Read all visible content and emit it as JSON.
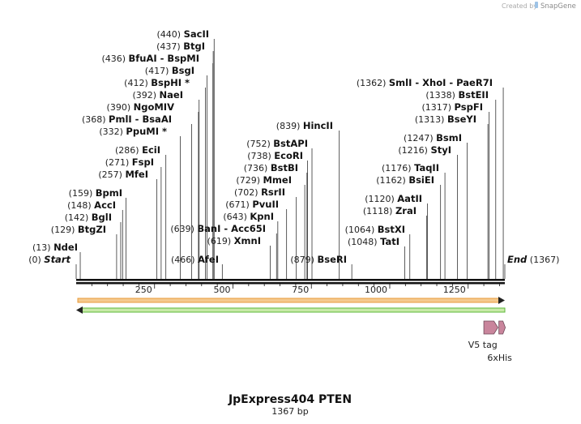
{
  "map": {
    "title": "JpExpress404 PTEN",
    "length_label": "1367 bp",
    "length": 1367,
    "credit": "Created by",
    "brand": "SnapGene",
    "ticks": [
      "250",
      "500",
      "750",
      "1000",
      "1250"
    ],
    "start": {
      "pos_label": "(0)",
      "name": "Start"
    },
    "end": {
      "pos_label": "(1367)",
      "name": "End"
    },
    "sites_top": [
      {
        "pos": 440,
        "pos_label": "(440)",
        "name": "SacII"
      },
      {
        "pos": 437,
        "pos_label": "(437)",
        "name": "BtgI"
      },
      {
        "pos": 436,
        "pos_label": "(436)",
        "name": "BfuAI  -  BspMI"
      },
      {
        "pos": 417,
        "pos_label": "(417)",
        "name": "BsgI"
      },
      {
        "pos": 412,
        "pos_label": "(412)",
        "name": "BspHI *"
      },
      {
        "pos": 392,
        "pos_label": "(392)",
        "name": "NaeI"
      },
      {
        "pos": 390,
        "pos_label": "(390)",
        "name": "NgoMIV"
      },
      {
        "pos": 368,
        "pos_label": "(368)",
        "name": "PmlI  -  BsaAI"
      },
      {
        "pos": 332,
        "pos_label": "(332)",
        "name": "PpuMI *"
      },
      {
        "pos": 286,
        "pos_label": "(286)",
        "name": "EciI"
      },
      {
        "pos": 271,
        "pos_label": "(271)",
        "name": "FspI"
      },
      {
        "pos": 257,
        "pos_label": "(257)",
        "name": "MfeI"
      },
      {
        "pos": 159,
        "pos_label": "(159)",
        "name": "BpmI"
      },
      {
        "pos": 148,
        "pos_label": "(148)",
        "name": "AccI"
      },
      {
        "pos": 142,
        "pos_label": "(142)",
        "name": "BglI"
      },
      {
        "pos": 129,
        "pos_label": "(129)",
        "name": "BtgZI"
      },
      {
        "pos": 13,
        "pos_label": "(13)",
        "name": "NdeI"
      }
    ],
    "sites_mid": [
      {
        "pos": 839,
        "pos_label": "(839)",
        "name": "HincII"
      },
      {
        "pos": 752,
        "pos_label": "(752)",
        "name": "BstAPI"
      },
      {
        "pos": 738,
        "pos_label": "(738)",
        "name": "EcoRI"
      },
      {
        "pos": 736,
        "pos_label": "(736)",
        "name": "BstBI"
      },
      {
        "pos": 729,
        "pos_label": "(729)",
        "name": "MmeI"
      },
      {
        "pos": 702,
        "pos_label": "(702)",
        "name": "RsrII"
      },
      {
        "pos": 671,
        "pos_label": "(671)",
        "name": "PvuII"
      },
      {
        "pos": 643,
        "pos_label": "(643)",
        "name": "KpnI"
      },
      {
        "pos": 639,
        "pos_label": "(639)",
        "name": "BanI  -  Acc65I"
      },
      {
        "pos": 619,
        "pos_label": "(619)",
        "name": "XmnI"
      },
      {
        "pos": 466,
        "pos_label": "(466)",
        "name": "AfeI"
      },
      {
        "pos": 879,
        "pos_label": "(879)",
        "name": "BseRI"
      }
    ],
    "sites_right": [
      {
        "pos": 1362,
        "pos_label": "(1362)",
        "name": "SmlI   -  XhoI   -  PaeR7I"
      },
      {
        "pos": 1338,
        "pos_label": "(1338)",
        "name": "BstEII"
      },
      {
        "pos": 1317,
        "pos_label": "(1317)",
        "name": "PspFI"
      },
      {
        "pos": 1313,
        "pos_label": "(1313)",
        "name": "BseYI"
      },
      {
        "pos": 1247,
        "pos_label": "(1247)",
        "name": "BsmI"
      },
      {
        "pos": 1216,
        "pos_label": "(1216)",
        "name": "StyI"
      },
      {
        "pos": 1176,
        "pos_label": "(1176)",
        "name": "TaqII"
      },
      {
        "pos": 1162,
        "pos_label": "(1162)",
        "name": "BsiEI"
      },
      {
        "pos": 1120,
        "pos_label": "(1120)",
        "name": "AatII"
      },
      {
        "pos": 1118,
        "pos_label": "(1118)",
        "name": "ZraI"
      },
      {
        "pos": 1064,
        "pos_label": "(1064)",
        "name": "BstXI"
      },
      {
        "pos": 1048,
        "pos_label": "(1048)",
        "name": "TatI"
      }
    ],
    "features": [
      {
        "name": "V5 tag",
        "start": 1300,
        "end": 1345,
        "color": "#c9859c"
      },
      {
        "name": "6xHis",
        "start": 1348,
        "end": 1366,
        "color": "#c9859c"
      }
    ],
    "colors": {
      "orange_bar": "#f5c98e",
      "orange_edge": "#e89a3a",
      "green_bar": "#c8eaa8",
      "green_edge": "#5cb83a"
    }
  }
}
